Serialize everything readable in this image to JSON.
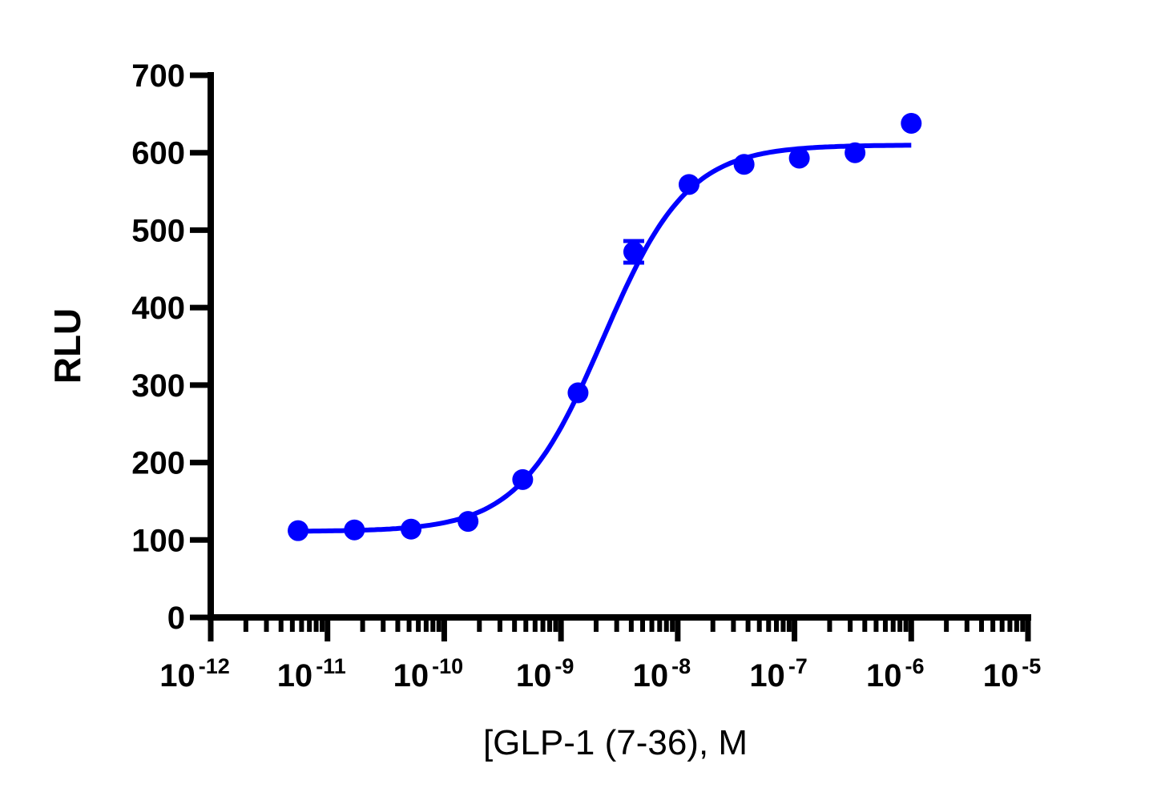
{
  "chart_data": {
    "type": "scatter",
    "xscale": "log",
    "xlabel": "[GLP-1 (7-36), M",
    "ylabel": "RLU",
    "xlim": [
      1e-12,
      1e-05
    ],
    "ylim": [
      0,
      700
    ],
    "yticks": [
      0,
      100,
      200,
      300,
      400,
      500,
      600,
      700
    ],
    "xticks": [
      {
        "base": "10",
        "exp": "-12"
      },
      {
        "base": "10",
        "exp": "-11"
      },
      {
        "base": "10",
        "exp": "-10"
      },
      {
        "base": "10",
        "exp": "-9"
      },
      {
        "base": "10",
        "exp": "-8"
      },
      {
        "base": "10",
        "exp": "-7"
      },
      {
        "base": "10",
        "exp": "-6"
      },
      {
        "base": "10",
        "exp": "-5"
      }
    ],
    "series": [
      {
        "color": "#0000ff",
        "points": [
          {
            "x": 5.6e-12,
            "y": 112
          },
          {
            "x": 1.7e-11,
            "y": 113
          },
          {
            "x": 5.2e-11,
            "y": 114
          },
          {
            "x": 1.6e-10,
            "y": 124
          },
          {
            "x": 4.7e-10,
            "y": 178
          },
          {
            "x": 1.4e-09,
            "y": 290
          },
          {
            "x": 4.2e-09,
            "y": 472,
            "err": 14
          },
          {
            "x": 1.25e-08,
            "y": 559
          },
          {
            "x": 3.7e-08,
            "y": 585
          },
          {
            "x": 1.1e-07,
            "y": 593
          },
          {
            "x": 3.3e-07,
            "y": 600
          },
          {
            "x": 1e-06,
            "y": 638
          }
        ],
        "fit": {
          "bottom": 111,
          "top": 610,
          "ec50": 2.3e-09,
          "hill": 1.2
        }
      }
    ]
  }
}
